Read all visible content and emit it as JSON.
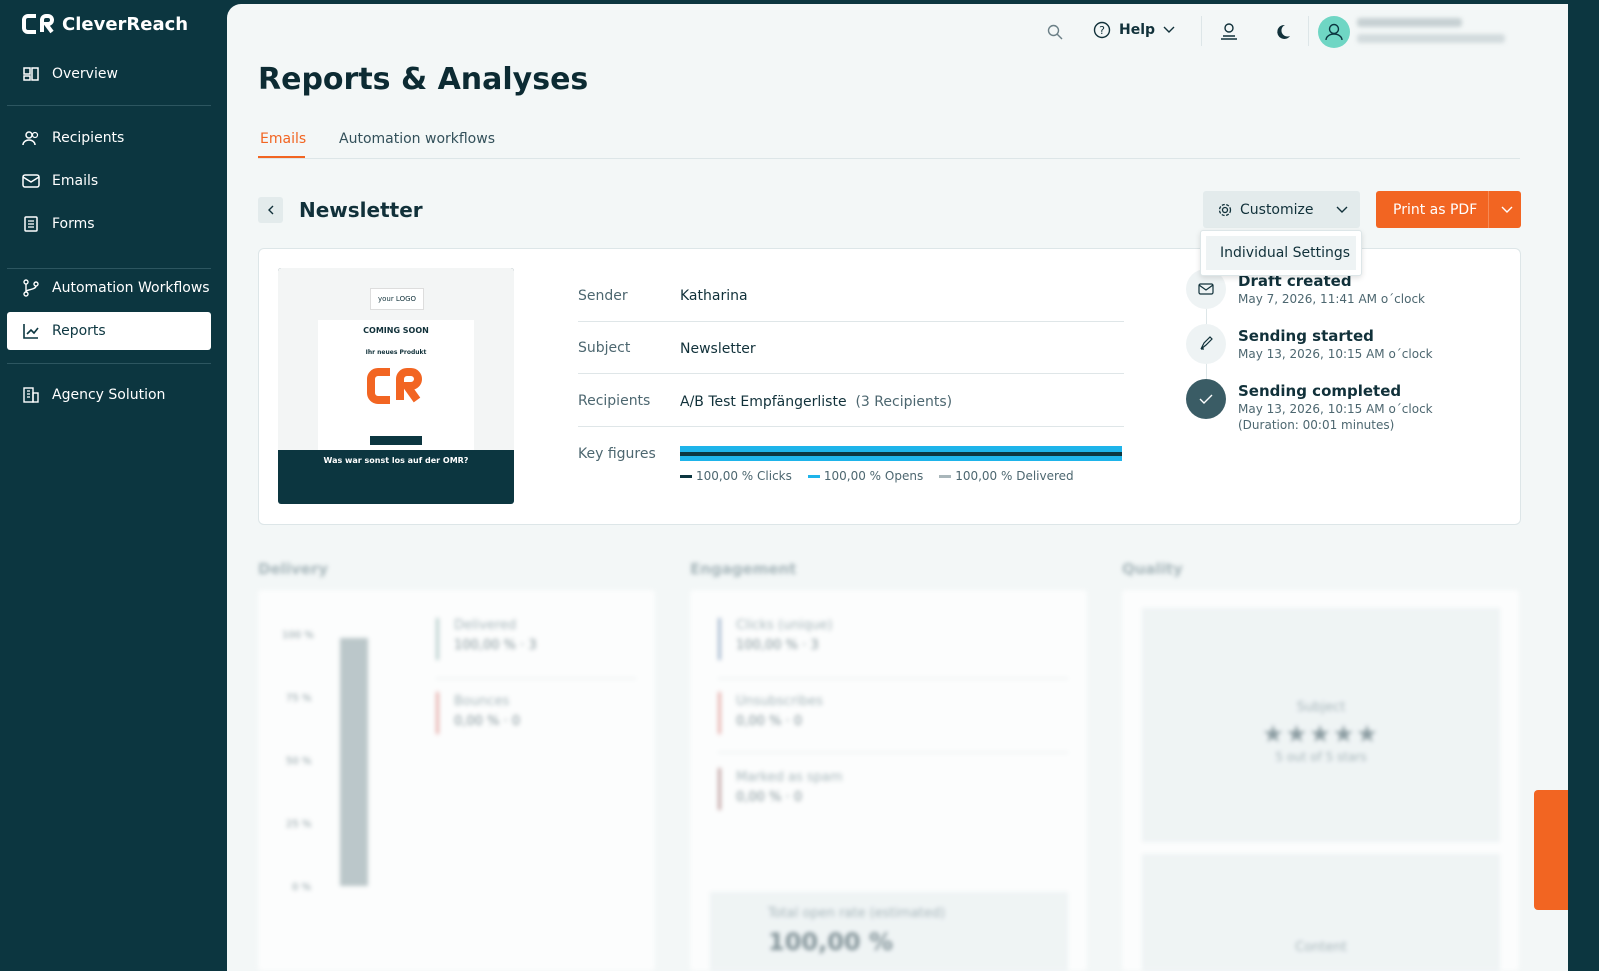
{
  "sidebar": {
    "brand": "CleverReach",
    "nav": [
      "Overview",
      "Recipients",
      "Emails",
      "Forms",
      "Automation Workflows",
      "Reports",
      "Agency Solution"
    ]
  },
  "topbar": {
    "help": "Help"
  },
  "header": {
    "title": "Reports & Analyses",
    "tabs": [
      "Emails",
      "Automation workflows"
    ]
  },
  "report": {
    "name": "Newsletter",
    "customize": "Customize",
    "print": "Print as PDF",
    "menu": [
      "Individual Settings"
    ],
    "preview": {
      "logo": "your LOGO",
      "headline": "COMING SOON",
      "subline": "Ihr neues Produkt",
      "footer": "Was war sonst los auf der OMR?"
    },
    "details": [
      {
        "label": "Sender",
        "value": "Katharina"
      },
      {
        "label": "Subject",
        "value": "Newsletter"
      },
      {
        "label": "Recipients",
        "value": "A/B Test Empfängerliste",
        "extra": "(3 Recipients)"
      },
      {
        "label": "Key figures"
      }
    ],
    "key_figures": [
      "100,00 % Clicks",
      "100,00 % Opens",
      "100,00 % Delivered"
    ],
    "timeline": [
      {
        "title": "Draft created",
        "time": "May 7, 2026, 11:41 AM o´clock"
      },
      {
        "title": "Sending started",
        "time": "May 13, 2026, 10:15 AM o´clock"
      },
      {
        "title": "Sending completed",
        "time": "May 13, 2026, 10:15 AM o´clock",
        "note": "(Duration: 00:01 minutes)"
      }
    ]
  },
  "sections": {
    "delivery": {
      "title": "Delivery",
      "axis": [
        "100 %",
        "75 %",
        "50 %",
        "25 %",
        "0 %"
      ],
      "items": [
        [
          "Delivered",
          "100,00 % · 3"
        ],
        [
          "Bounces",
          "0,00 % · 0"
        ]
      ]
    },
    "engagement": {
      "title": "Engagement",
      "items": [
        [
          "Clicks (unique)",
          "100,00 % · 3"
        ],
        [
          "Unsubscribes",
          "0,00 % · 0"
        ],
        [
          "Marked as spam",
          "0,00 % · 0"
        ]
      ],
      "open_rate": "Total open rate (estimated)",
      "open_value": "100,00 %"
    },
    "quality": {
      "title": "Quality",
      "subject": "Subject",
      "stars": "5 out of 5 stars",
      "content": "Content"
    }
  }
}
